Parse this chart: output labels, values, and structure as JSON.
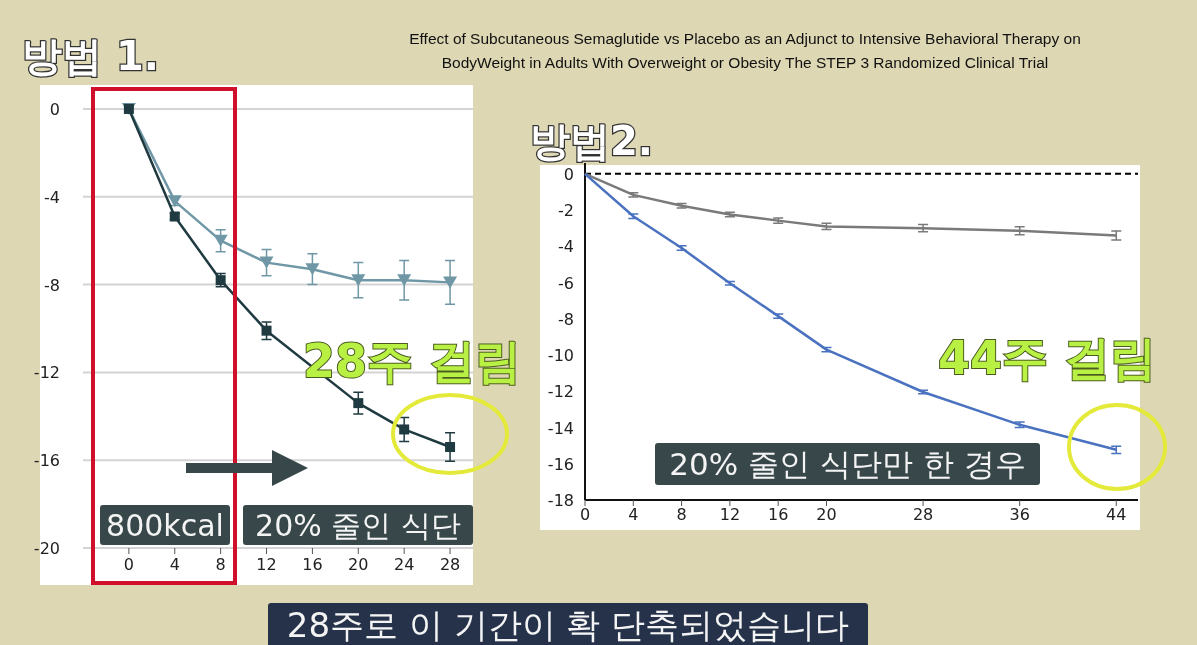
{
  "chart_data": [
    {
      "type": "line",
      "title": "방법 1.",
      "xlim": [
        -4,
        30
      ],
      "ylim": [
        -20,
        1
      ],
      "xticks": [
        0,
        4,
        8,
        12,
        16,
        20,
        24,
        28
      ],
      "yticks": [
        0,
        -4,
        -8,
        -12,
        -16,
        -20
      ],
      "grid": "y",
      "line_style": "solid",
      "series": [
        {
          "color": "#6f97a6",
          "marker": "triangle",
          "x": [
            0,
            4,
            8,
            12,
            16,
            20,
            24,
            28
          ],
          "values": [
            0,
            -4.2,
            -6.0,
            -7.0,
            -7.3,
            -7.8,
            -7.8,
            -7.9
          ],
          "errors": [
            null,
            0.2,
            0.5,
            0.6,
            0.7,
            0.8,
            0.9,
            1.0
          ]
        },
        {
          "color": "#1f3a40",
          "marker": "square",
          "x": [
            0,
            4,
            8,
            12,
            20,
            24,
            28
          ],
          "values": [
            0,
            -4.9,
            -7.8,
            -10.1,
            -13.4,
            -14.6,
            -15.4
          ],
          "errors": [
            null,
            0.15,
            0.3,
            0.4,
            0.5,
            0.55,
            0.65
          ]
        }
      ],
      "annotations": [
        "800kcal",
        "20% 줄인 식단",
        "28주 걸림"
      ]
    },
    {
      "type": "line",
      "title": "방법2.",
      "subtitle": "Effect of Subcutaneous Semaglutide vs Placebo as an Adjunct to Intensive Behavioral Therapy on BodyWeight in Adults With Overweight or Obesity The STEP 3 Randomized Clinical Trial",
      "xlim": [
        0,
        45.8
      ],
      "ylim": [
        -18,
        0.6
      ],
      "xticks": [
        0,
        4,
        8,
        12,
        16,
        20,
        28,
        36,
        44
      ],
      "yticks": [
        0,
        -2,
        -4,
        -6,
        -8,
        -10,
        -12,
        -14,
        -16,
        -18
      ],
      "grid": false,
      "line_style": "solid",
      "marker": "none",
      "ref_lines": [
        {
          "axis": "y",
          "value": 0,
          "color": "#000000",
          "line_style": "dashed"
        }
      ],
      "series": [
        {
          "color": "#7a7a7a",
          "x": [
            0,
            4,
            8,
            12,
            16,
            20,
            28,
            36,
            44
          ],
          "values": [
            0,
            -1.16,
            -1.76,
            -2.24,
            -2.58,
            -2.9,
            -3.0,
            -3.14,
            -3.4
          ],
          "errors": [
            null,
            0.12,
            0.12,
            0.12,
            0.14,
            0.17,
            0.2,
            0.22,
            0.25
          ]
        },
        {
          "color": "#4a72c0",
          "x": [
            0,
            4,
            8,
            12,
            16,
            20,
            28,
            36,
            44
          ],
          "values": [
            0,
            -2.34,
            -4.09,
            -6.04,
            -7.85,
            -9.7,
            -12.04,
            -13.85,
            -15.23
          ],
          "errors": [
            null,
            0.12,
            0.12,
            0.1,
            0.12,
            0.12,
            0.1,
            0.15,
            0.2
          ]
        }
      ],
      "annotations": [
        "20% 줄인 식단만 한 경우",
        "44주 걸림",
        "28주로 이 기간이 확 단축되었습니다"
      ]
    }
  ]
}
